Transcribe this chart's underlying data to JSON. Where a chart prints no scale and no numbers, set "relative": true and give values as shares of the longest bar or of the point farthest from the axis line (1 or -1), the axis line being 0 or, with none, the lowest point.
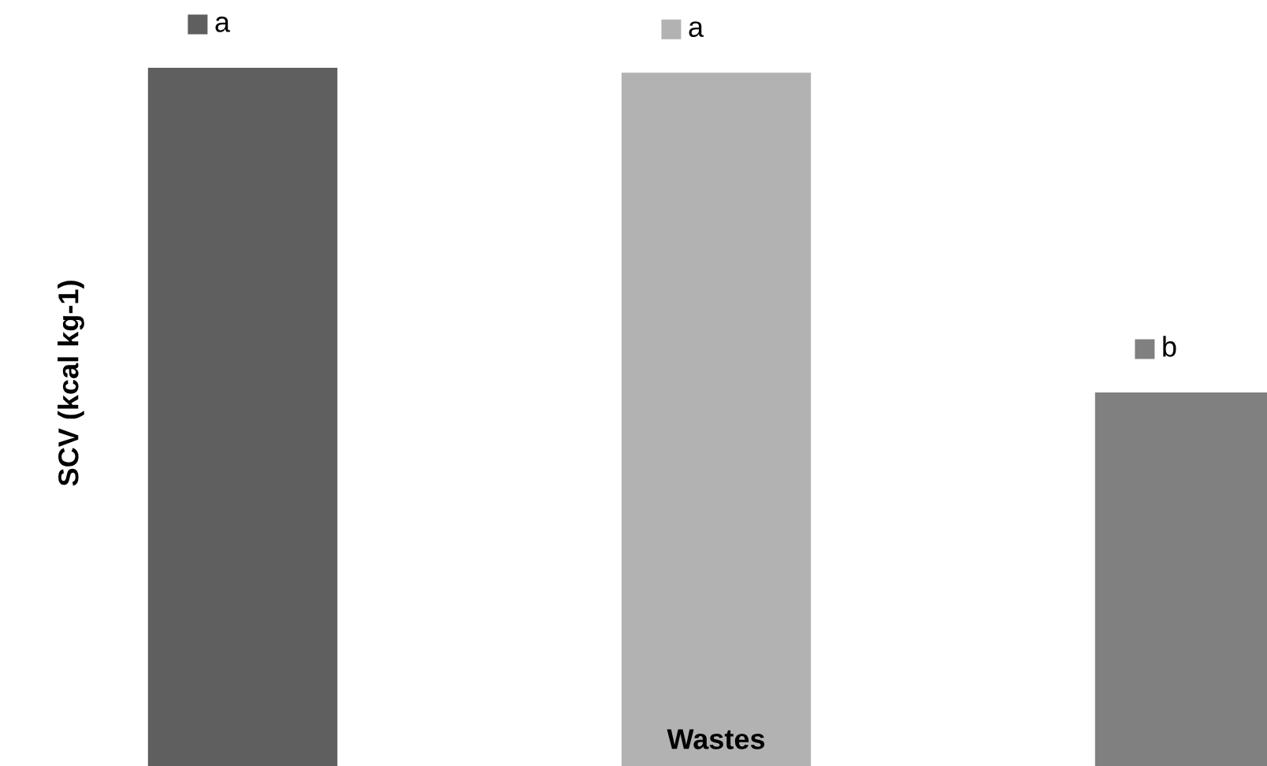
{
  "chart_data": {
    "type": "bar",
    "relative": true,
    "ylabel": "SCV (kcal kg-1)",
    "xlabel": "Wastes",
    "categories": [
      null,
      null,
      null
    ],
    "values": [
      1,
      0.993,
      0.535
    ],
    "colors": [
      "#5f5f5f",
      "#b2b2b2",
      "#808080"
    ],
    "annotations": [
      "a",
      "a",
      "b"
    ],
    "grid": false,
    "legend": false
  }
}
